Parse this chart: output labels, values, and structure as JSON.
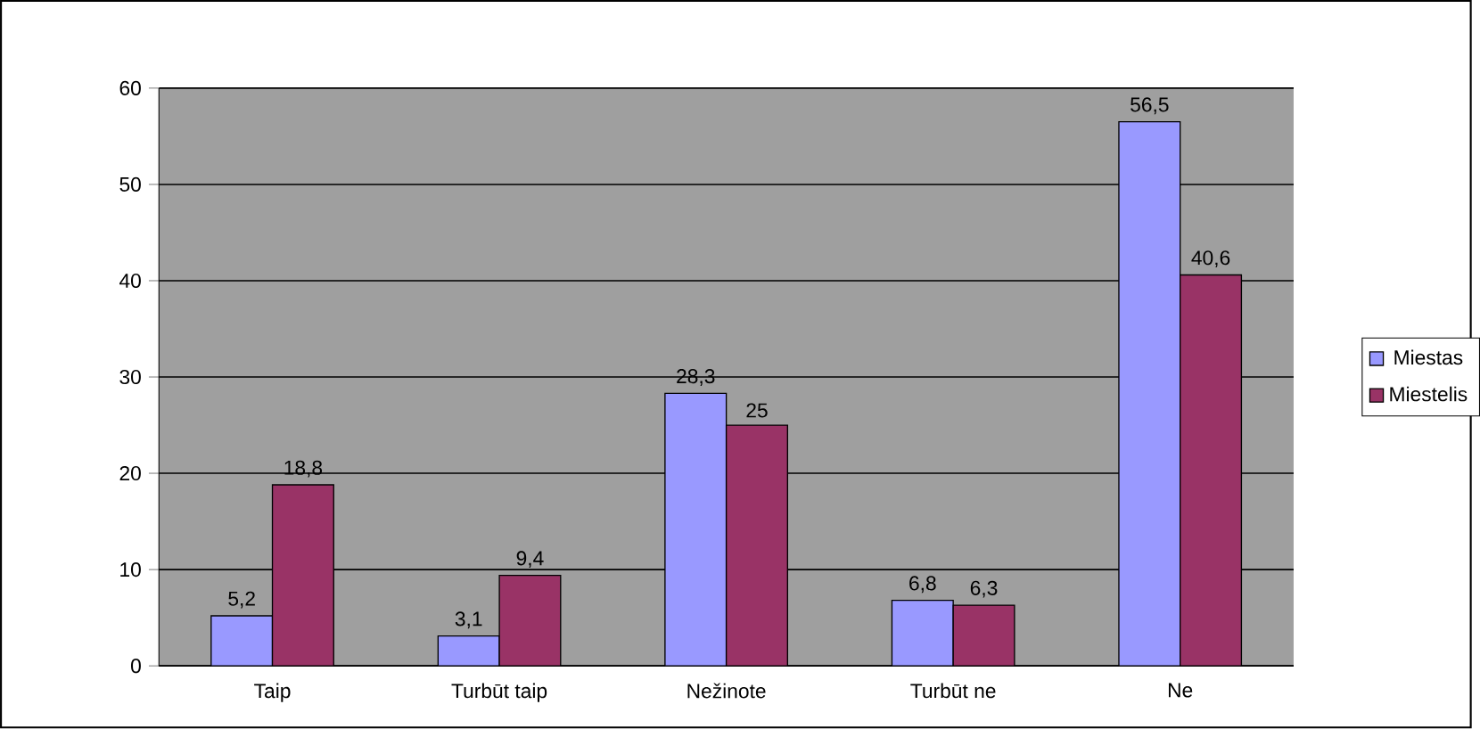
{
  "chart_data": {
    "type": "bar",
    "categories": [
      "Taip",
      "Turbūt taip",
      "Nežinote",
      "Turbūt ne",
      "Ne"
    ],
    "series": [
      {
        "name": "Miestas",
        "color": "#9999ff",
        "values": [
          5.2,
          3.1,
          28.3,
          6.8,
          56.5
        ],
        "value_labels": [
          "5,2",
          "3,1",
          "28,3",
          "6,8",
          "56,5"
        ]
      },
      {
        "name": "Miestelis",
        "color": "#993366",
        "values": [
          18.8,
          9.4,
          25,
          6.3,
          40.6
        ],
        "value_labels": [
          "18,8",
          "9,4",
          "25",
          "6,3",
          "40,6"
        ]
      }
    ],
    "ylim": [
      0,
      60
    ],
    "yticks": [
      0,
      10,
      20,
      30,
      40,
      50,
      60
    ],
    "grid": "y",
    "legend": "right"
  }
}
